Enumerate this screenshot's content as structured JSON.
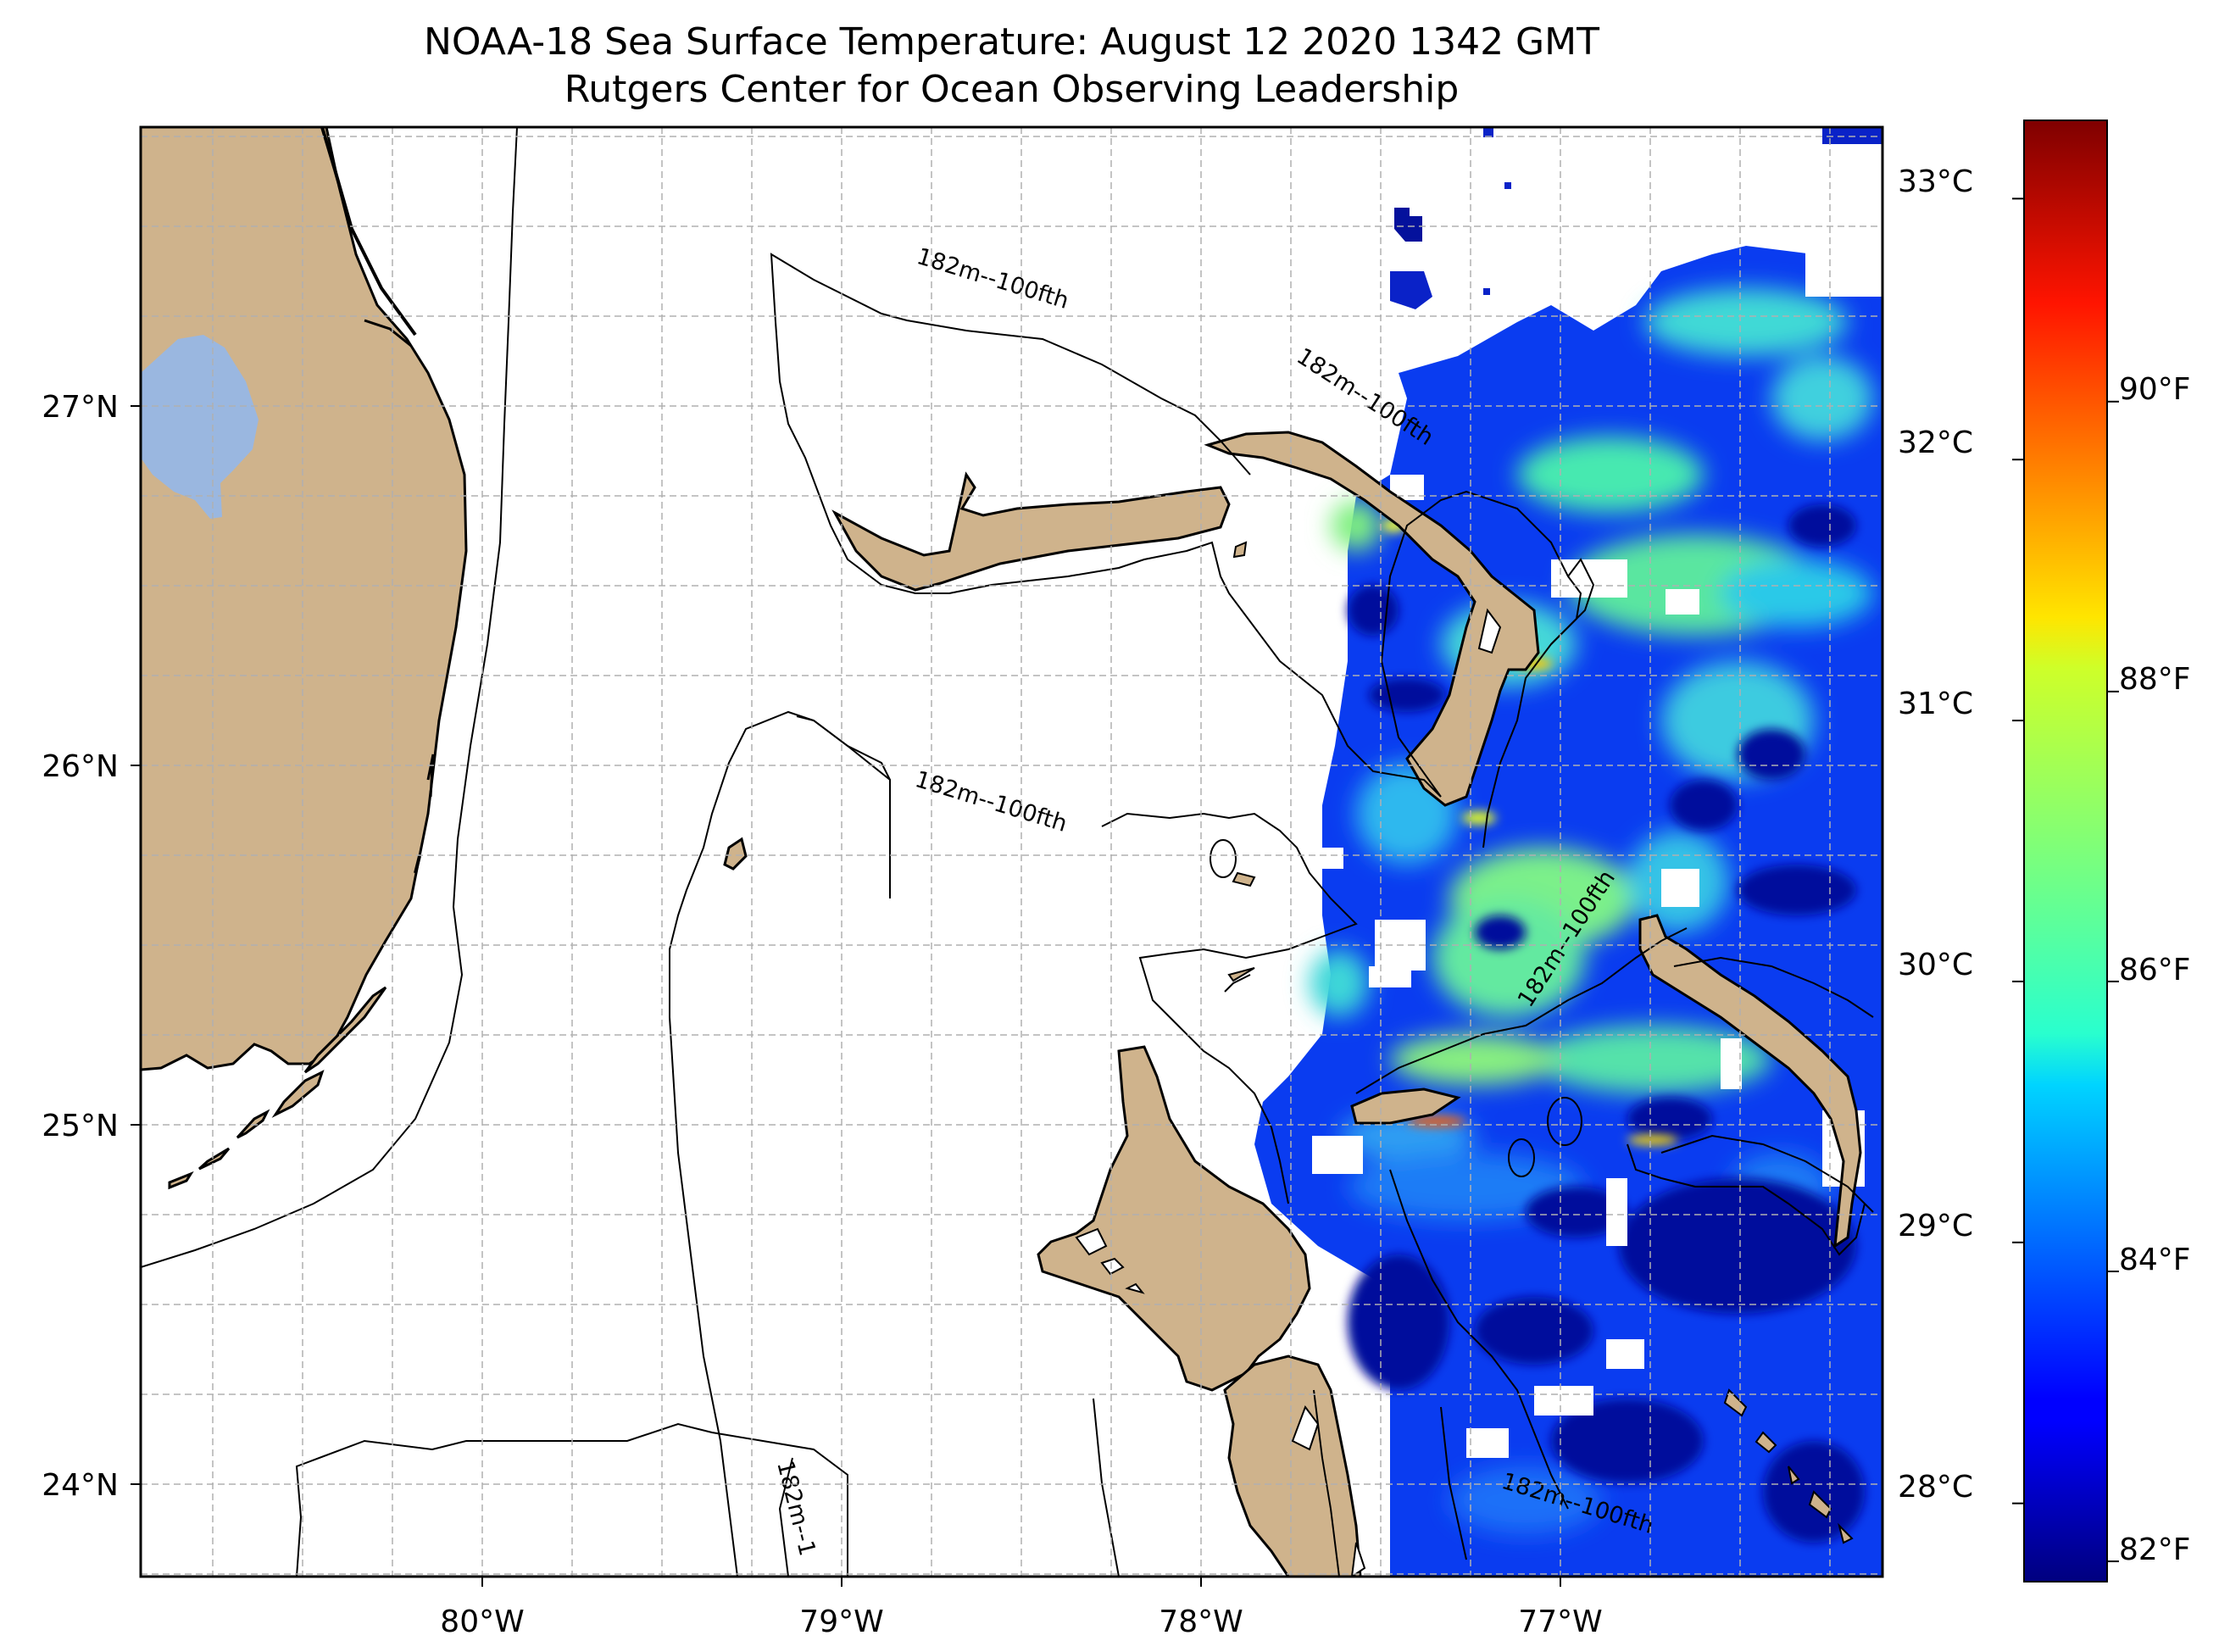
{
  "title": {
    "line1": "NOAA-18 Sea Surface Temperature: August 12 2020 1342 GMT",
    "line2": "Rutgers Center for Ocean Observing Leadership"
  },
  "axes": {
    "lon_ticks": [
      "80°W",
      "79°W",
      "78°W",
      "77°W"
    ],
    "lat_ticks": [
      "27°N",
      "26°N",
      "25°N",
      "24°N"
    ],
    "lon_range": [
      -80.95,
      -76.08
    ],
    "lat_range": [
      23.75,
      27.78
    ],
    "grid": true
  },
  "contour_labels": {
    "label": "182m--100fth",
    "truncated": "182m--1"
  },
  "colorbar": {
    "celsius_ticks": [
      "33°C",
      "32°C",
      "31°C",
      "30°C",
      "29°C",
      "28°C"
    ],
    "fahrenheit_ticks": [
      "90°F",
      "88°F",
      "86°F",
      "84°F",
      "82°F"
    ],
    "celsius_values": [
      33,
      32,
      31,
      30,
      29,
      28
    ],
    "fahrenheit_values": [
      90,
      88,
      86,
      84,
      82
    ],
    "range_c": [
      27.7,
      33.3
    ],
    "colormap": "jet"
  },
  "colors": {
    "land": "#cfb38c",
    "lake": "#9ab7e0",
    "ocean_no_data": "#ffffff"
  }
}
